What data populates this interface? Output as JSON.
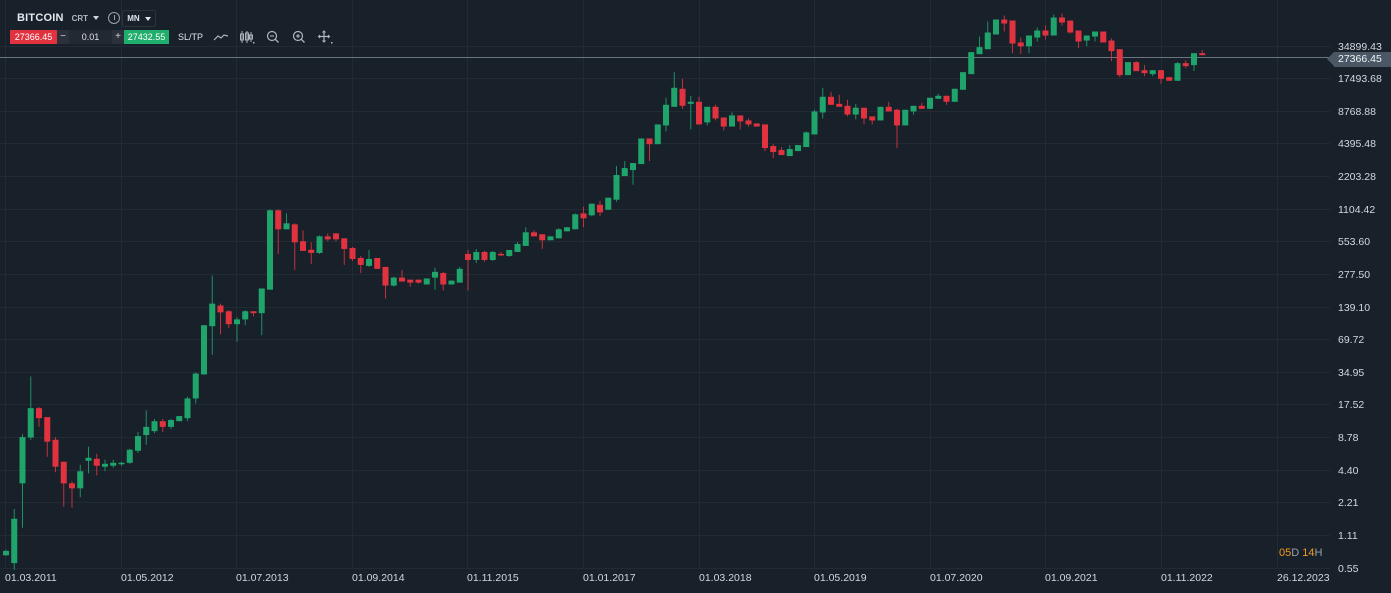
{
  "toolbar": {
    "symbol": "BITCOIN",
    "symbol_type": "CRT",
    "timeframe": "MN",
    "bid_price": "27366.45",
    "quantity": "0.01",
    "ask_price": "27432.55",
    "minus_label": "−",
    "plus_label": "+",
    "sltp_label": "SL/TP",
    "icons": [
      "chevron-down-icon",
      "info-icon",
      "line-chart-icon",
      "candlestick-icon",
      "zoom-out-icon",
      "zoom-in-icon",
      "crosshair-icon"
    ]
  },
  "current_price": {
    "label": "27366.45",
    "value": 27366.45
  },
  "countdown": {
    "days": "05",
    "days_unit": "D",
    "hours": "14",
    "hours_unit": "H"
  },
  "colors": {
    "background": "#18202a",
    "grid": "#222a33",
    "bullish": "#1fa56c",
    "bearish": "#e0333f",
    "price_line": "#6b7580",
    "countdown": "#f29a21"
  },
  "chart_data": {
    "type": "candlestick",
    "title": "BITCOIN",
    "timeframe": "MN",
    "scale": "log",
    "ylim": [
      0.55,
      69000
    ],
    "grid": true,
    "y_ticks": [
      "34899.43",
      "17493.68",
      "8768.88",
      "4395.48",
      "2203.28",
      "1104.42",
      "553.60",
      "277.50",
      "139.10",
      "69.72",
      "34.95",
      "17.52",
      "8.78",
      "4.40",
      "2.21",
      "1.11",
      "0.55"
    ],
    "x_ticks": [
      "01.03.2011",
      "01.05.2012",
      "01.07.2013",
      "01.09.2014",
      "01.11.2015",
      "01.01.2017",
      "01.03.2018",
      "01.05.2019",
      "01.07.2020",
      "01.09.2021",
      "01.11.2022",
      "26.12.2023"
    ],
    "candle_fields": [
      "open",
      "high",
      "low",
      "close"
    ],
    "candles": [
      [
        0.72,
        0.81,
        0.71,
        0.79
      ],
      [
        0.61,
        1.92,
        0.53,
        1.56
      ],
      [
        3.3,
        9.36,
        1.29,
        8.78
      ],
      [
        8.7,
        31.7,
        8.3,
        16.2
      ],
      [
        16.2,
        16.6,
        10.9,
        13.1
      ],
      [
        13.4,
        13.4,
        5.79,
        7.96
      ],
      [
        8.3,
        8.78,
        4.17,
        4.69
      ],
      [
        5.21,
        5.21,
        2.01,
        3.3
      ],
      [
        3.3,
        3.45,
        1.97,
        2.97
      ],
      [
        2.97,
        4.89,
        2.46,
        4.26
      ],
      [
        5.32,
        7.16,
        4.08,
        5.67
      ],
      [
        5.55,
        6.17,
        3.91,
        4.79
      ],
      [
        4.69,
        5.44,
        4.26,
        4.99
      ],
      [
        4.79,
        5.44,
        4.59,
        5.1
      ],
      [
        4.99,
        5.21,
        4.79,
        5.1
      ],
      [
        5.1,
        6.86,
        4.99,
        6.72
      ],
      [
        6.58,
        9.75,
        6.31,
        8.97
      ],
      [
        9.17,
        15.5,
        7.47,
        10.9
      ],
      [
        9.96,
        12.9,
        9.55,
        12.3
      ],
      [
        12.3,
        12.9,
        9.75,
        10.9
      ],
      [
        10.9,
        12.9,
        10.4,
        12.6
      ],
      [
        12.3,
        13.7,
        12.3,
        13.7
      ],
      [
        13.1,
        20.7,
        12.3,
        19.9
      ],
      [
        19.9,
        34.5,
        17.9,
        33.7
      ],
      [
        33.1,
        93.8,
        33.1,
        93.8
      ],
      [
        91.8,
        268,
        50.1,
        148
      ],
      [
        142,
        148,
        77.4,
        123
      ],
      [
        126,
        129,
        88.0,
        95.8
      ],
      [
        95.8,
        111,
        66.0,
        106
      ],
      [
        106,
        129,
        93.8,
        126
      ],
      [
        126,
        126,
        113,
        121
      ],
      [
        121,
        204,
        75.9,
        204
      ],
      [
        199,
        1090,
        199,
        1067
      ],
      [
        1067,
        1090,
        424,
        714
      ],
      [
        714,
        1001,
        714,
        810
      ],
      [
        793,
        810,
        302,
        542
      ],
      [
        554,
        699,
        452,
        452
      ],
      [
        463,
        542,
        343,
        433
      ],
      [
        433,
        628,
        424,
        615
      ],
      [
        615,
        655,
        554,
        577
      ],
      [
        655,
        655,
        554,
        577
      ],
      [
        590,
        590,
        336,
        471
      ],
      [
        481,
        491,
        365,
        381
      ],
      [
        389,
        406,
        283,
        336
      ],
      [
        329,
        461,
        322,
        381
      ],
      [
        389,
        389,
        309,
        309
      ],
      [
        322,
        322,
        165,
        217
      ],
      [
        217,
        262,
        212,
        257
      ],
      [
        257,
        302,
        236,
        236
      ],
      [
        246,
        246,
        212,
        231
      ],
      [
        246,
        246,
        226,
        231
      ],
      [
        222,
        252,
        222,
        252
      ],
      [
        257,
        316,
        199,
        290
      ],
      [
        283,
        290,
        195,
        222
      ],
      [
        222,
        241,
        222,
        241
      ],
      [
        231,
        322,
        231,
        309
      ],
      [
        424,
        461,
        195,
        373
      ],
      [
        373,
        471,
        350,
        442
      ],
      [
        442,
        452,
        358,
        373
      ],
      [
        373,
        452,
        365,
        442
      ],
      [
        424,
        442,
        406,
        415
      ],
      [
        406,
        461,
        398,
        461
      ],
      [
        442,
        546,
        442,
        524
      ],
      [
        502,
        745,
        502,
        670
      ],
      [
        670,
        699,
        615,
        615
      ],
      [
        642,
        642,
        471,
        566
      ],
      [
        566,
        615,
        566,
        615
      ],
      [
        590,
        729,
        590,
        714
      ],
      [
        684,
        745,
        684,
        745
      ],
      [
        714,
        1001,
        714,
        980
      ],
      [
        1001,
        1152,
        745,
        901
      ],
      [
        960,
        1227,
        940,
        1227
      ],
      [
        1201,
        1307,
        940,
        1021
      ],
      [
        1080,
        1393,
        1080,
        1393
      ],
      [
        1336,
        2723,
        1281,
        2250
      ],
      [
        2203,
        3027,
        2203,
        2608
      ],
      [
        2500,
        2901,
        1835,
        2901
      ],
      [
        2840,
        4883,
        2840,
        4883
      ],
      [
        4883,
        4883,
        3027,
        4325
      ],
      [
        4325,
        6571,
        4325,
        6571
      ],
      [
        6434,
        11549,
        5665,
        9953
      ],
      [
        9541,
        19855,
        9541,
        14267
      ],
      [
        13970,
        17210,
        9146,
        9742
      ],
      [
        10159,
        12048,
        5912,
        10610
      ],
      [
        10610,
        11794,
        6571,
        6571
      ],
      [
        6856,
        9541,
        6434,
        9541
      ],
      [
        9541,
        9953,
        7150,
        7458
      ],
      [
        7603,
        7603,
        5788,
        6284
      ],
      [
        6284,
        8469,
        6284,
        7950
      ],
      [
        7950,
        7950,
        5912,
        7001
      ],
      [
        7150,
        7458,
        6284,
        6571
      ],
      [
        6712,
        6712,
        6284,
        6284
      ],
      [
        6571,
        6571,
        3739,
        3985
      ],
      [
        4157,
        4325,
        3225,
        3661
      ],
      [
        3820,
        4069,
        3437,
        3437
      ],
      [
        3364,
        4245,
        3364,
        3902
      ],
      [
        3739,
        4245,
        3739,
        4245
      ],
      [
        4069,
        5665,
        4069,
        5547
      ],
      [
        5318,
        8956,
        5318,
        8650
      ],
      [
        8469,
        14267,
        7458,
        11794
      ],
      [
        11794,
        13112,
        9953,
        9953
      ],
      [
        10159,
        12303,
        9541,
        9541
      ],
      [
        9742,
        11066,
        7783,
        8100
      ],
      [
        8100,
        10159,
        7304,
        9349
      ],
      [
        9349,
        9349,
        6571,
        7458
      ],
      [
        7783,
        7783,
        6571,
        7150
      ],
      [
        7150,
        9541,
        7150,
        9541
      ],
      [
        9541,
        10610,
        8650,
        8650
      ],
      [
        8956,
        9146,
        3985,
        6434
      ],
      [
        6434,
        8956,
        6434,
        8956
      ],
      [
        8650,
        9742,
        8100,
        9742
      ],
      [
        9742,
        10383,
        9146,
        9146
      ],
      [
        9146,
        11549,
        9146,
        11549
      ],
      [
        11303,
        12536,
        11303,
        12048
      ],
      [
        12048,
        12048,
        9953,
        10610
      ],
      [
        10610,
        13970,
        10610,
        13970
      ],
      [
        13680,
        19855,
        13680,
        19855
      ],
      [
        19053,
        30331,
        19053,
        30331
      ],
      [
        29077,
        42226,
        29077,
        33711
      ],
      [
        32300,
        58000,
        32300,
        45960
      ],
      [
        44044,
        60515,
        44044,
        60515
      ],
      [
        60515,
        65860,
        46940,
        55596
      ],
      [
        59230,
        59230,
        29687,
        36400
      ],
      [
        37203,
        41320,
        29077,
        34342
      ],
      [
        34342,
        43136,
        29687,
        43136
      ],
      [
        41320,
        51090,
        37971,
        47952
      ],
      [
        47952,
        53291,
        39610,
        43136
      ],
      [
        43136,
        67250,
        43136,
        63130
      ],
      [
        63130,
        68680,
        53291,
        56783
      ],
      [
        59230,
        59230,
        44985,
        45960
      ],
      [
        47952,
        47952,
        33011,
        37971
      ],
      [
        38776,
        43136,
        34342,
        43136
      ],
      [
        42226,
        46940,
        37971,
        46940
      ],
      [
        46940,
        46940,
        37203,
        37203
      ],
      [
        38776,
        40483,
        25070,
        30982
      ],
      [
        32300,
        32300,
        17868,
        18650
      ],
      [
        18650,
        24547,
        18650,
        24547
      ],
      [
        24547,
        25070,
        20293,
        20293
      ],
      [
        20713,
        23041,
        18247,
        19436
      ],
      [
        19053,
        20713,
        18247,
        20713
      ],
      [
        20713,
        20713,
        15530,
        17257
      ],
      [
        17868,
        17868,
        16547,
        16547
      ],
      [
        16547,
        24547,
        16547,
        24036
      ],
      [
        24036,
        25610,
        21623,
        22550
      ],
      [
        23041,
        29687,
        20293,
        29687
      ],
      [
        29687,
        31635,
        28463,
        28463
      ]
    ]
  }
}
